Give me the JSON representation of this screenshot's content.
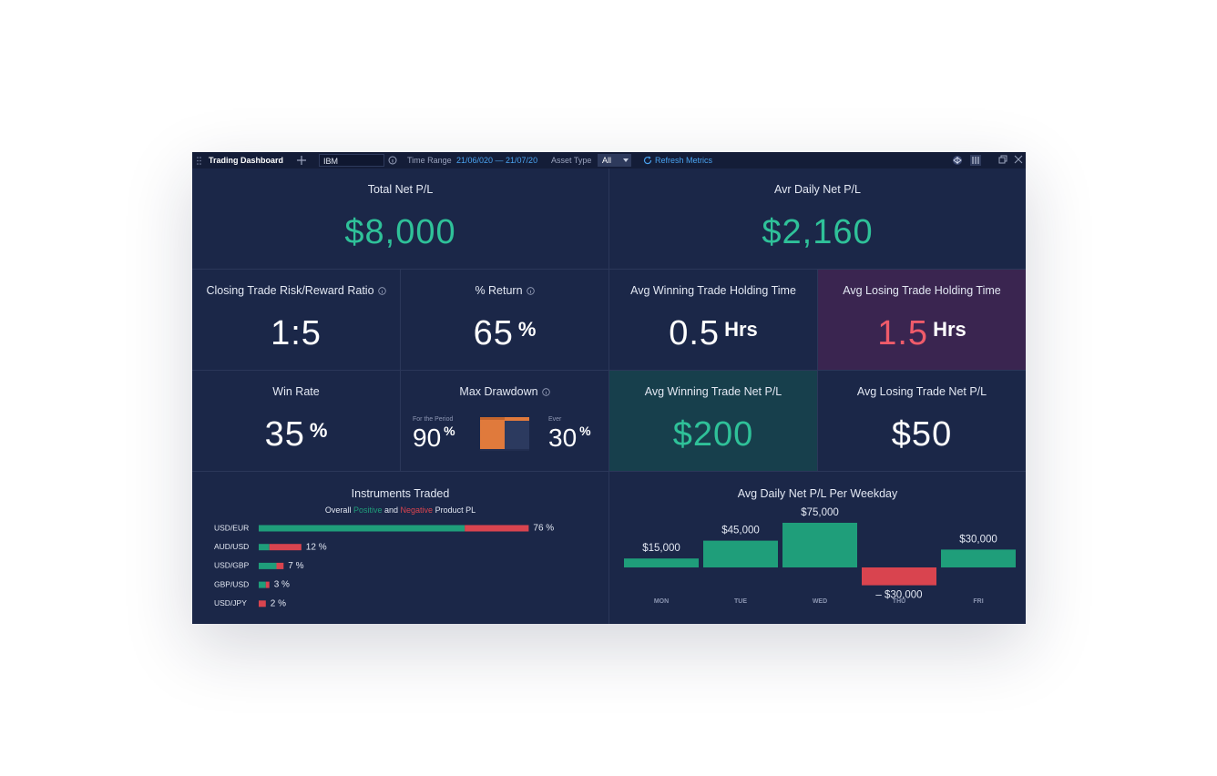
{
  "toolbar": {
    "title": "Trading Dashboard",
    "symbol": "IBM",
    "time_range_label": "Time Range",
    "time_range": "21/06/020 — 21/07/20",
    "asset_type_label": "Asset Type",
    "asset_type": "All",
    "refresh": "Refresh Metrics"
  },
  "tiles": [
    {
      "title": "Total Net P/L",
      "value": "$8,000",
      "value_color": "#2fc199"
    },
    {
      "title": "Avr Daily Net P/L",
      "value": "$2,160",
      "value_color": "#2fc199"
    },
    {
      "title": "Closing Trade Risk/Reward Ratio",
      "value": "1:5"
    },
    {
      "title": "% Return",
      "value": "65",
      "unit": "%"
    },
    {
      "title": "Avg Winning Trade Holding Time",
      "value": "0.5",
      "unit": "Hrs"
    },
    {
      "title": "Avg Losing Trade Holding Time",
      "value": "1.5",
      "unit": "Hrs",
      "value_color": "#ef5b6a",
      "background": "#3a2550"
    },
    {
      "title": "Win Rate",
      "value": "35",
      "unit": "%"
    },
    {
      "title": "Avg Winning Trade Net P/L",
      "value": "$200",
      "value_color": "#2fc199",
      "background": "#173f4c"
    },
    {
      "title": "Avg Losing Trade Net P/L",
      "value": "$50"
    }
  ],
  "max_drawdown": {
    "title": "Max Drawdown",
    "period_label": "For the Period",
    "period_value": "90",
    "ever_label": "Ever",
    "ever_value": "30",
    "unit": "%"
  },
  "instruments": {
    "title": "Instruments Traded",
    "subtitle": [
      "Overall",
      "Positive",
      "and",
      "Negative",
      "Product PL"
    ],
    "positive_color": "#1f9e7a",
    "negative_color": "#d9444f",
    "rows": [
      {
        "name": "USD/EUR",
        "positive": 58,
        "negative": 18,
        "label": "76 %"
      },
      {
        "name": "AUD/USD",
        "positive": 3,
        "negative": 9,
        "label": "12 %"
      },
      {
        "name": "USD/GBP",
        "positive": 5,
        "negative": 2,
        "label": "7 %"
      },
      {
        "name": "GBP/USD",
        "positive": 2,
        "negative": 1,
        "label": "3 %"
      },
      {
        "name": "USD/JPY",
        "positive": 0,
        "negative": 2,
        "label": "2 %"
      }
    ]
  },
  "weekday_chart": {
    "type": "bar",
    "title": "Avg Daily Net P/L Per Weekday",
    "categories": [
      "MON",
      "TUE",
      "WED",
      "THU",
      "FRI"
    ],
    "values": [
      15000,
      45000,
      75000,
      -30000,
      30000
    ],
    "value_labels": [
      "$15,000",
      "$45,000",
      "$75,000",
      "– $30,000",
      "$30,000"
    ],
    "positive_color": "#1f9e7a",
    "negative_color": "#d9444f"
  }
}
